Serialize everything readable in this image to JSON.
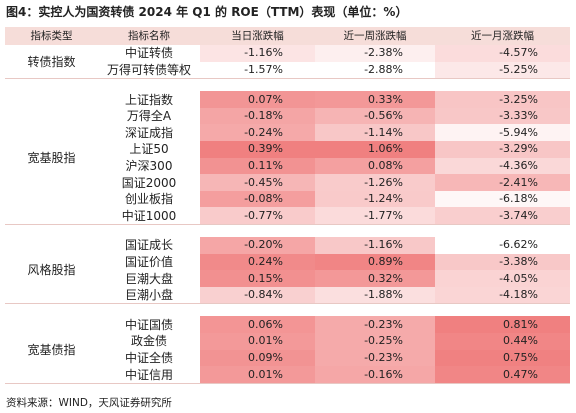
{
  "title": "图4：实控人为国资转债 2024 年 Q1 的 ROE（TTM）表现（单位：%）",
  "table": {
    "header": [
      "指标类型",
      "指标名称",
      "当日涨跌幅",
      "近一周涨跌幅",
      "近一月涨跌幅"
    ],
    "groups": [
      {
        "label": "转债指数",
        "rows": [
          [
            "中证转债",
            "-1.16%",
            "-2.38%",
            "-4.57%"
          ],
          [
            "万得可转债等权",
            "-1.57%",
            "-2.88%",
            "-5.25%"
          ]
        ]
      },
      {
        "label": "宽基股指",
        "rows": [
          [
            "上证指数",
            "0.07%",
            "0.33%",
            "-3.25%"
          ],
          [
            "万得全A",
            "-0.18%",
            "-0.56%",
            "-3.33%"
          ],
          [
            "深证成指",
            "-0.24%",
            "-1.14%",
            "-5.94%"
          ],
          [
            "上证50",
            "0.39%",
            "1.06%",
            "-3.29%"
          ],
          [
            "沪深300",
            "0.11%",
            "0.08%",
            "-4.36%"
          ],
          [
            "国证2000",
            "-0.45%",
            "-1.26%",
            "-2.41%"
          ],
          [
            "创业板指",
            "-0.08%",
            "-1.24%",
            "-6.18%"
          ],
          [
            "中证1000",
            "-0.77%",
            "-1.77%",
            "-3.74%"
          ]
        ]
      },
      {
        "label": "风格股指",
        "rows": [
          [
            "国证成长",
            "-0.20%",
            "-1.16%",
            "-6.62%"
          ],
          [
            "国证价值",
            "0.24%",
            "0.89%",
            "-3.38%"
          ],
          [
            "巨潮大盘",
            "0.15%",
            "0.32%",
            "-4.05%"
          ],
          [
            "巨潮小盘",
            "-0.84%",
            "-1.88%",
            "-4.18%"
          ]
        ]
      },
      {
        "label": "宽基债指",
        "rows": [
          [
            "中证国债",
            "0.06%",
            "-0.23%",
            "0.81%"
          ],
          [
            "政金债",
            "0.01%",
            "-0.25%",
            "0.44%"
          ],
          [
            "中证全债",
            "0.09%",
            "-0.23%",
            "0.75%"
          ],
          [
            "中证信用",
            "0.01%",
            "-0.16%",
            "0.47%"
          ]
        ]
      }
    ]
  },
  "source": "资料来源：WIND，天风证券研究所"
}
